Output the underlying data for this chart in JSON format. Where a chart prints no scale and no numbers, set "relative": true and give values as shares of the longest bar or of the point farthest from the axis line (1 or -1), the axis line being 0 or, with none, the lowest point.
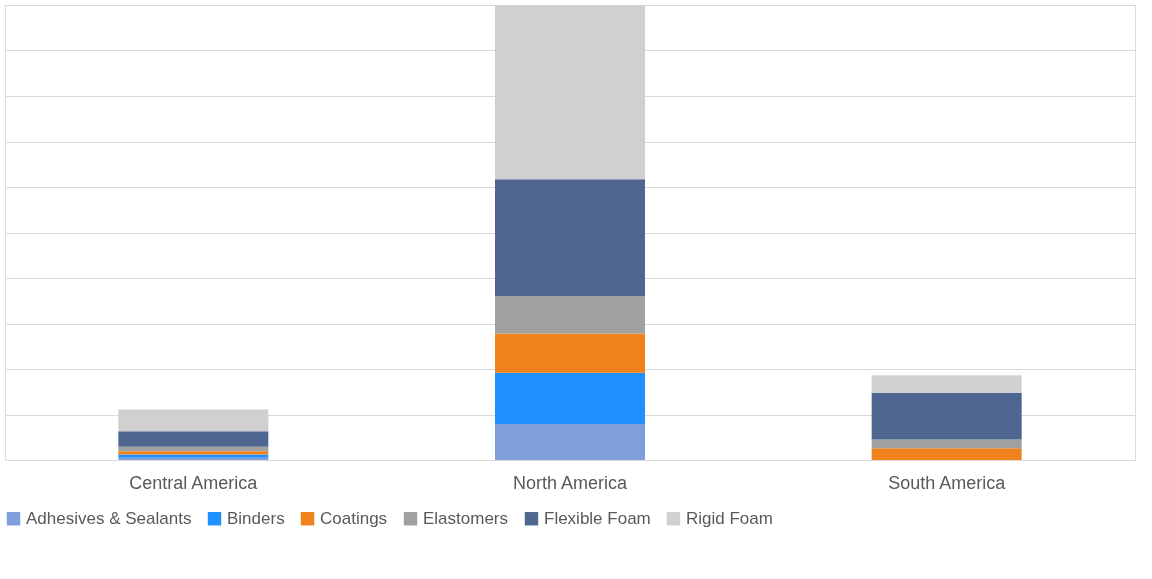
{
  "chart_data": {
    "type": "bar",
    "stacked": true,
    "relative": true,
    "grid": "y",
    "legend": "bottom",
    "categories": [
      "Central America",
      "North America",
      "South America"
    ],
    "series": [
      {
        "name": "Adhesives & Sealants",
        "color": "#7f9fdc",
        "values": [
          0.005,
          0.079,
          0.0
        ]
      },
      {
        "name": "Binders",
        "color": "#1e90ff",
        "values": [
          0.007,
          0.113,
          0.0
        ]
      },
      {
        "name": "Coatings",
        "color": "#f0821e",
        "values": [
          0.007,
          0.086,
          0.026
        ]
      },
      {
        "name": "Elastomers",
        "color": "#a0a0a0",
        "values": [
          0.01,
          0.082,
          0.019
        ]
      },
      {
        "name": "Flexible Foam",
        "color": "#4e6690",
        "values": [
          0.034,
          0.257,
          0.103
        ]
      },
      {
        "name": "Rigid Foam",
        "color": "#d0d0d0",
        "values": [
          0.048,
          0.383,
          0.038
        ]
      }
    ]
  }
}
